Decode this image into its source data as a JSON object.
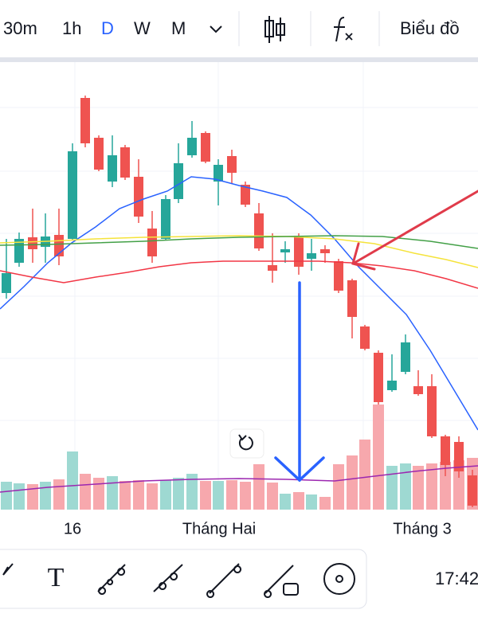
{
  "toolbar": {
    "intervals": [
      "30m",
      "1h",
      "D",
      "W",
      "M"
    ],
    "chart_button": "Biểu đồ"
  },
  "time_axis": {
    "labels": [
      "16",
      "Tháng Hai",
      "Tháng 3"
    ]
  },
  "drawing_toolbar": {
    "text_tool": "T",
    "clock": "17:42"
  }
}
